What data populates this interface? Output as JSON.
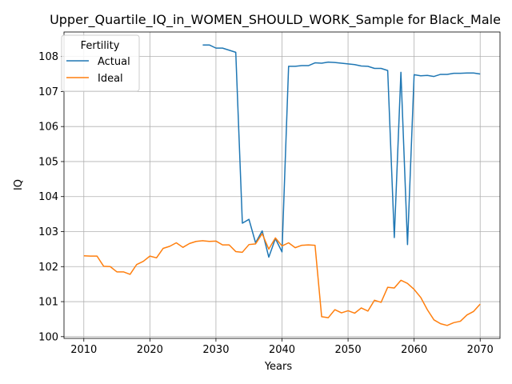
{
  "chart_data": {
    "type": "line",
    "title": "Upper_Quartile_IQ_in_WOMEN_SHOULD_WORK_Sample for Black_Male",
    "xlabel": "Years",
    "ylabel": "IQ",
    "xlim": [
      2007,
      2073
    ],
    "ylim": [
      99.95,
      108.7
    ],
    "xticks": [
      2010,
      2020,
      2030,
      2040,
      2050,
      2060,
      2070
    ],
    "yticks": [
      100,
      101,
      102,
      103,
      104,
      105,
      106,
      107,
      108
    ],
    "grid": true,
    "legend": {
      "title": "Fertility",
      "position": "top-left"
    },
    "series": [
      {
        "name": "Actual",
        "color": "#1f77b4",
        "x": [
          2028,
          2029,
          2030,
          2031,
          2032,
          2033,
          2034,
          2035,
          2036,
          2037,
          2038,
          2039,
          2040,
          2041,
          2042,
          2043,
          2044,
          2045,
          2046,
          2047,
          2048,
          2049,
          2050,
          2051,
          2052,
          2053,
          2054,
          2055,
          2056,
          2057,
          2058,
          2059,
          2060,
          2061,
          2062,
          2063,
          2064,
          2065,
          2066,
          2067,
          2068,
          2069,
          2070
        ],
        "y": [
          108.33,
          108.33,
          108.24,
          108.24,
          108.18,
          108.12,
          103.24,
          103.35,
          102.68,
          103.02,
          102.27,
          102.8,
          102.42,
          107.72,
          107.72,
          107.74,
          107.74,
          107.82,
          107.81,
          107.84,
          107.83,
          107.81,
          107.79,
          107.77,
          107.73,
          107.72,
          107.66,
          107.66,
          107.6,
          102.83,
          107.55,
          102.63,
          107.48,
          107.45,
          107.46,
          107.43,
          107.49,
          107.49,
          107.52,
          107.52,
          107.53,
          107.53,
          107.5
        ]
      },
      {
        "name": "Ideal",
        "color": "#ff7f0e",
        "x": [
          2010,
          2011,
          2012,
          2013,
          2014,
          2015,
          2016,
          2017,
          2018,
          2019,
          2020,
          2021,
          2022,
          2023,
          2024,
          2025,
          2026,
          2027,
          2028,
          2029,
          2030,
          2031,
          2032,
          2033,
          2034,
          2035,
          2036,
          2037,
          2038,
          2039,
          2040,
          2041,
          2042,
          2043,
          2044,
          2045,
          2046,
          2047,
          2048,
          2049,
          2050,
          2051,
          2052,
          2053,
          2054,
          2055,
          2056,
          2057,
          2058,
          2059,
          2060,
          2061,
          2062,
          2063,
          2064,
          2065,
          2066,
          2067,
          2068,
          2069,
          2070
        ],
        "y": [
          102.31,
          102.3,
          102.3,
          102.01,
          102.0,
          101.85,
          101.85,
          101.78,
          102.06,
          102.15,
          102.3,
          102.25,
          102.52,
          102.58,
          102.68,
          102.55,
          102.66,
          102.72,
          102.74,
          102.72,
          102.73,
          102.62,
          102.62,
          102.43,
          102.41,
          102.63,
          102.65,
          102.94,
          102.5,
          102.82,
          102.59,
          102.68,
          102.54,
          102.61,
          102.62,
          102.61,
          100.57,
          100.54,
          100.77,
          100.68,
          100.74,
          100.67,
          100.82,
          100.73,
          101.04,
          100.98,
          101.41,
          101.39,
          101.61,
          101.52,
          101.35,
          101.12,
          100.77,
          100.48,
          100.37,
          100.32,
          100.4,
          100.44,
          100.62,
          100.72,
          100.93
        ]
      }
    ]
  }
}
